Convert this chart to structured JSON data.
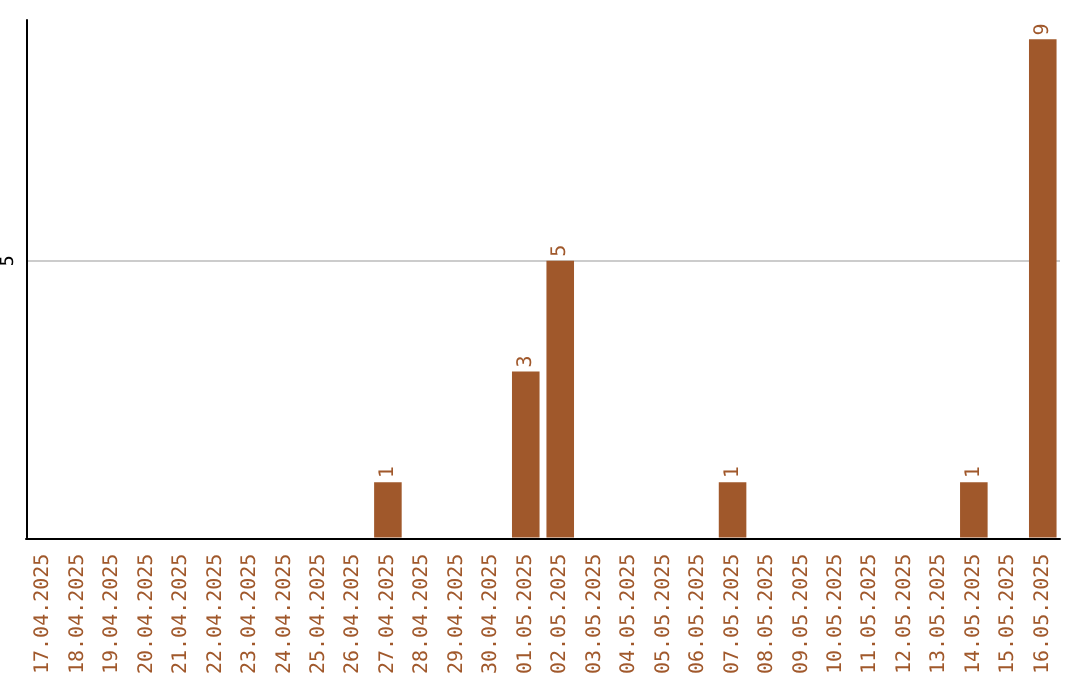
{
  "chart_data": {
    "type": "bar",
    "categories": [
      "17.04.2025",
      "18.04.2025",
      "19.04.2025",
      "20.04.2025",
      "21.04.2025",
      "22.04.2025",
      "23.04.2025",
      "24.04.2025",
      "25.04.2025",
      "26.04.2025",
      "27.04.2025",
      "28.04.2025",
      "29.04.2025",
      "30.04.2025",
      "01.05.2025",
      "02.05.2025",
      "03.05.2025",
      "04.05.2025",
      "05.05.2025",
      "06.05.2025",
      "07.05.2025",
      "08.05.2025",
      "09.05.2025",
      "10.05.2025",
      "11.05.2025",
      "12.05.2025",
      "13.05.2025",
      "14.05.2025",
      "15.05.2025",
      "16.05.2025"
    ],
    "values": [
      0,
      0,
      0,
      0,
      0,
      0,
      0,
      0,
      0,
      0,
      1,
      0,
      0,
      0,
      3,
      5,
      0,
      0,
      0,
      0,
      1,
      0,
      0,
      0,
      0,
      0,
      0,
      1,
      0,
      9
    ],
    "value_labels": [
      null,
      null,
      null,
      null,
      null,
      null,
      null,
      null,
      null,
      null,
      "1",
      null,
      null,
      null,
      "3",
      "5",
      null,
      null,
      null,
      null,
      "1",
      null,
      null,
      null,
      null,
      null,
      null,
      "1",
      null,
      "9"
    ],
    "color": "#a0582b",
    "ylim": [
      0,
      9.35
    ],
    "yticks": [
      5
    ],
    "grid": "y"
  }
}
